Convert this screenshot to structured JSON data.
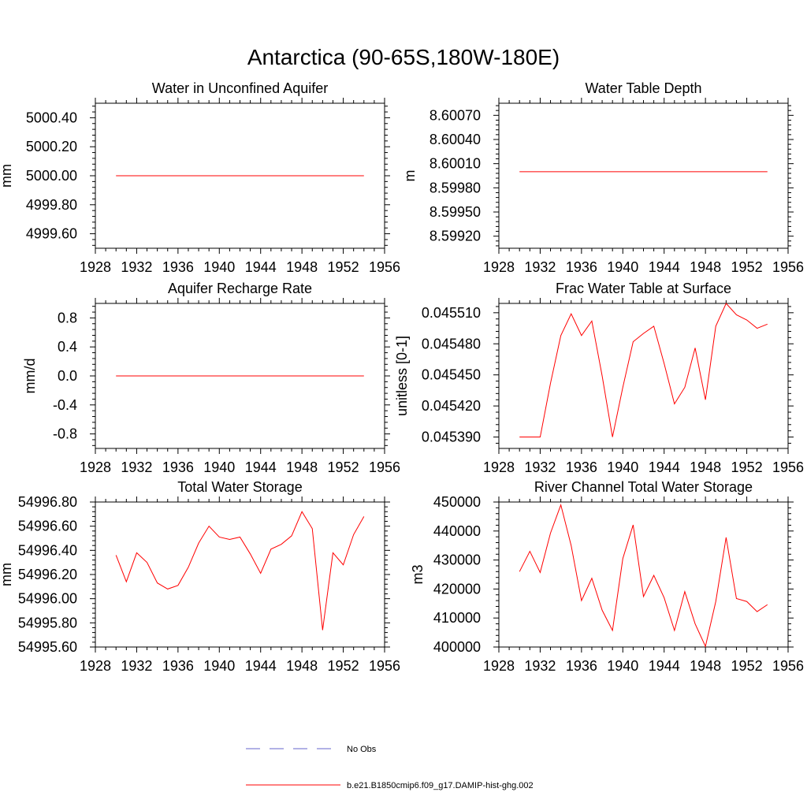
{
  "figure": {
    "title": "Antarctica (90-65S,180W-180E)"
  },
  "legend": {
    "entries": [
      {
        "label": "No Obs",
        "color": "#6666cc",
        "dash": "dashed"
      },
      {
        "label": "b.e21.B1850cmip6.f09_g17.DAMIP-hist-ghg.002",
        "color": "#ff0000",
        "dash": "solid"
      }
    ]
  },
  "colors": {
    "series": "#ff0000",
    "axis": "#000000"
  },
  "chart_data": [
    {
      "type": "line",
      "title": "Water in Unconfined Aquifer",
      "xlabel": "",
      "ylabel": "mm",
      "xlim": [
        1928,
        1956
      ],
      "ylim": [
        4999.5,
        5000.5
      ],
      "xticks": [
        1928,
        1932,
        1936,
        1940,
        1944,
        1948,
        1952,
        1956
      ],
      "xtick_labels": [
        "1928",
        "1932",
        "1936",
        "1940",
        "1944",
        "1948",
        "1952",
        "1956"
      ],
      "yticks": [
        4999.6,
        4999.8,
        5000.0,
        5000.2,
        5000.4
      ],
      "ytick_labels": [
        "4999.60",
        "4999.80",
        "5000.00",
        "5000.20",
        "5000.40"
      ],
      "x": [
        1930,
        1954
      ],
      "series": [
        {
          "values": [
            5000.0,
            5000.0
          ]
        }
      ]
    },
    {
      "type": "line",
      "title": "Water Table Depth",
      "xlabel": "",
      "ylabel": "m",
      "xlim": [
        1928,
        1956
      ],
      "ylim": [
        8.59905,
        8.60085
      ],
      "xticks": [
        1928,
        1932,
        1936,
        1940,
        1944,
        1948,
        1952,
        1956
      ],
      "xtick_labels": [
        "1928",
        "1932",
        "1936",
        "1940",
        "1944",
        "1948",
        "1952",
        "1956"
      ],
      "yticks": [
        8.5992,
        8.5995,
        8.5998,
        8.6001,
        8.6004,
        8.6007
      ],
      "ytick_labels": [
        "8.59920",
        "8.59950",
        "8.59980",
        "8.60010",
        "8.60040",
        "8.60070"
      ],
      "x": [
        1930,
        1954
      ],
      "series": [
        {
          "values": [
            8.6,
            8.6
          ]
        }
      ]
    },
    {
      "type": "line",
      "title": "Aquifer Recharge Rate",
      "xlabel": "",
      "ylabel": "mm/d",
      "xlim": [
        1928,
        1956
      ],
      "ylim": [
        -1.0,
        1.0
      ],
      "xticks": [
        1928,
        1932,
        1936,
        1940,
        1944,
        1948,
        1952,
        1956
      ],
      "xtick_labels": [
        "1928",
        "1932",
        "1936",
        "1940",
        "1944",
        "1948",
        "1952",
        "1956"
      ],
      "yticks": [
        -0.8,
        -0.4,
        0.0,
        0.4,
        0.8
      ],
      "ytick_labels": [
        "-0.8",
        "-0.4",
        "0.0",
        "0.4",
        "0.8"
      ],
      "x": [
        1930,
        1954
      ],
      "series": [
        {
          "values": [
            0.0,
            0.0
          ]
        }
      ]
    },
    {
      "type": "line",
      "title": "Frac Water Table at Surface",
      "xlabel": "",
      "ylabel": "unitless [0-1]",
      "xlim": [
        1928,
        1956
      ],
      "ylim": [
        0.045379,
        0.045519
      ],
      "xticks": [
        1928,
        1932,
        1936,
        1940,
        1944,
        1948,
        1952,
        1956
      ],
      "xtick_labels": [
        "1928",
        "1932",
        "1936",
        "1940",
        "1944",
        "1948",
        "1952",
        "1956"
      ],
      "yticks": [
        0.04539,
        0.04542,
        0.04545,
        0.04548,
        0.04551
      ],
      "ytick_labels": [
        "0.045390",
        "0.045420",
        "0.045450",
        "0.045480",
        "0.045510"
      ],
      "x": [
        1930,
        1931,
        1932,
        1933,
        1934,
        1935,
        1936,
        1937,
        1938,
        1939,
        1940,
        1941,
        1942,
        1943,
        1944,
        1945,
        1946,
        1947,
        1948,
        1949,
        1950,
        1951,
        1952,
        1953,
        1954
      ],
      "series": [
        {
          "values": [
            0.04539,
            0.04539,
            0.04539,
            0.045442,
            0.045488,
            0.045509,
            0.045488,
            0.045502,
            0.045449,
            0.04539,
            0.045438,
            0.045482,
            0.04549,
            0.045497,
            0.045461,
            0.045422,
            0.045438,
            0.045476,
            0.045426,
            0.045497,
            0.045519,
            0.045508,
            0.045503,
            0.045495,
            0.045499
          ]
        }
      ]
    },
    {
      "type": "line",
      "title": "Total Water Storage",
      "xlabel": "",
      "ylabel": "mm",
      "xlim": [
        1928,
        1956
      ],
      "ylim": [
        54995.6,
        54996.8
      ],
      "xticks": [
        1928,
        1932,
        1936,
        1940,
        1944,
        1948,
        1952,
        1956
      ],
      "xtick_labels": [
        "1928",
        "1932",
        "1936",
        "1940",
        "1944",
        "1948",
        "1952",
        "1956"
      ],
      "yticks": [
        54995.6,
        54995.8,
        54996.0,
        54996.2,
        54996.4,
        54996.6,
        54996.8
      ],
      "ytick_labels": [
        "54995.60",
        "54995.80",
        "54996.00",
        "54996.20",
        "54996.40",
        "54996.60",
        "54996.80"
      ],
      "x": [
        1930,
        1931,
        1932,
        1933,
        1934,
        1935,
        1936,
        1937,
        1938,
        1939,
        1940,
        1941,
        1942,
        1943,
        1944,
        1945,
        1946,
        1947,
        1948,
        1949,
        1950,
        1951,
        1952,
        1953,
        1954
      ],
      "series": [
        {
          "values": [
            54996.36,
            54996.14,
            54996.38,
            54996.3,
            54996.13,
            54996.08,
            54996.11,
            54996.26,
            54996.46,
            54996.6,
            54996.51,
            54996.49,
            54996.51,
            54996.37,
            54996.21,
            54996.41,
            54996.45,
            54996.52,
            54996.72,
            54996.58,
            54995.74,
            54996.38,
            54996.28,
            54996.53,
            54996.68
          ]
        }
      ]
    },
    {
      "type": "line",
      "title": "River Channel Total Water Storage",
      "xlabel": "",
      "ylabel": "m3",
      "xlim": [
        1928,
        1956
      ],
      "ylim": [
        400000,
        450000
      ],
      "xticks": [
        1928,
        1932,
        1936,
        1940,
        1944,
        1948,
        1952,
        1956
      ],
      "xtick_labels": [
        "1928",
        "1932",
        "1936",
        "1940",
        "1944",
        "1948",
        "1952",
        "1956"
      ],
      "yticks": [
        400000,
        410000,
        420000,
        430000,
        440000,
        450000
      ],
      "ytick_labels": [
        "400000",
        "410000",
        "420000",
        "430000",
        "440000",
        "450000"
      ],
      "x": [
        1930,
        1931,
        1932,
        1933,
        1934,
        1935,
        1936,
        1937,
        1938,
        1939,
        1940,
        1941,
        1942,
        1943,
        1944,
        1945,
        1946,
        1947,
        1948,
        1949,
        1950,
        1951,
        1952,
        1953,
        1954
      ],
      "series": [
        {
          "values": [
            426000,
            433000,
            425700,
            439300,
            449000,
            435000,
            416000,
            423700,
            412700,
            405700,
            430500,
            442100,
            417400,
            424700,
            417000,
            405700,
            419100,
            408000,
            400200,
            415700,
            437800,
            416700,
            415700,
            412200,
            414600
          ]
        }
      ]
    }
  ]
}
